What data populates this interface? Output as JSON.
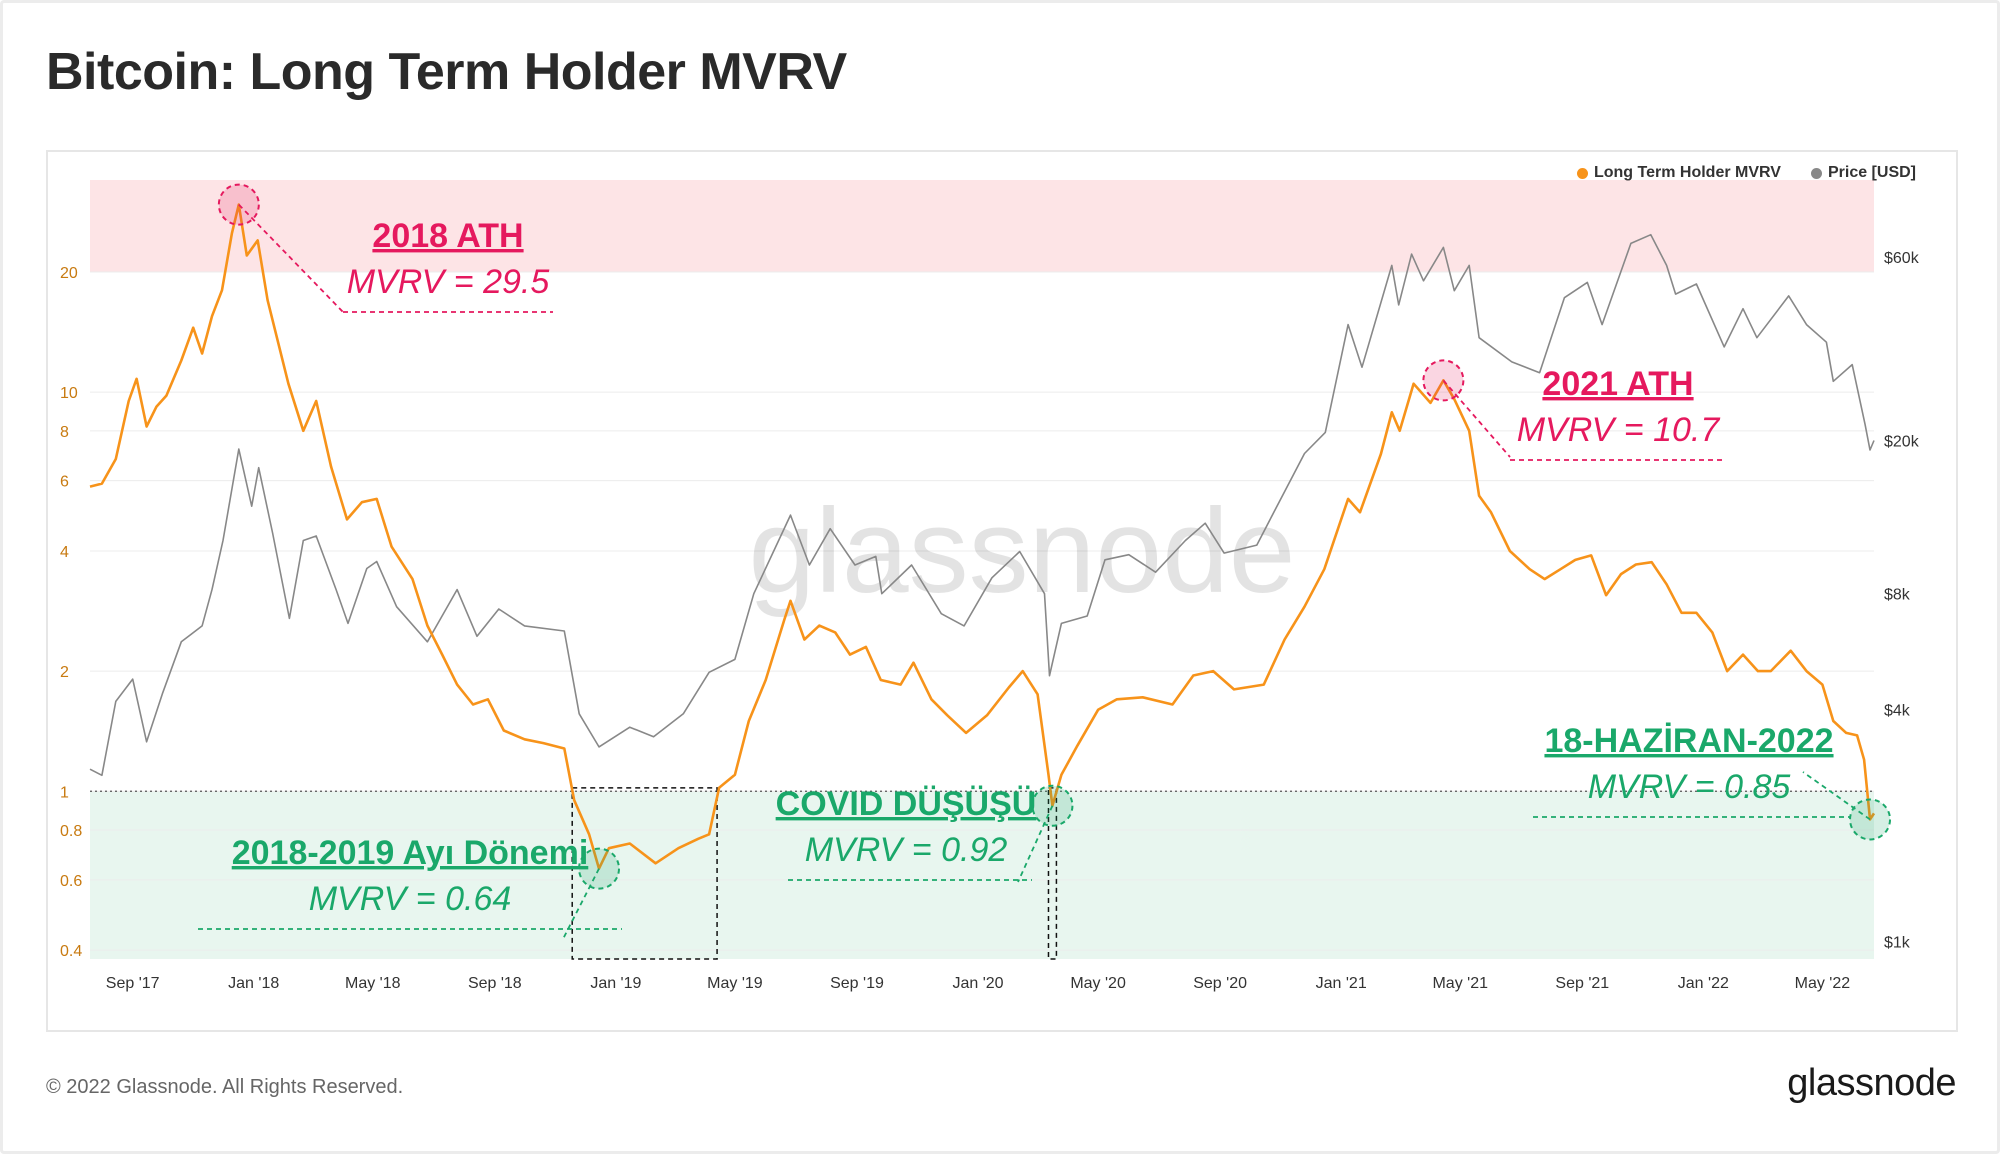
{
  "title": "Bitcoin: Long Term Holder MVRV",
  "footer": {
    "copyright": "© 2022 Glassnode. All Rights Reserved.",
    "logo": "glassnode"
  },
  "watermark": "glassnode",
  "chart_data": {
    "type": "line",
    "title": "Bitcoin: Long Term Holder MVRV",
    "x_range": [
      "2017-07-20",
      "2022-06-22"
    ],
    "x_ticks": [
      "Sep '17",
      "Jan '18",
      "May '18",
      "Sep '18",
      "Jan '19",
      "May '19",
      "Sep '19",
      "Jan '20",
      "May '20",
      "Sep '20",
      "Jan '21",
      "May '21",
      "Sep '21",
      "Jan '22",
      "May '22"
    ],
    "left_axis": {
      "scale": "log",
      "range": [
        0.38,
        34
      ],
      "ticks": [
        "0.4",
        "0.6",
        "0.8",
        "1",
        "2",
        "4",
        "6",
        "8",
        "10",
        "20"
      ]
    },
    "right_axis": {
      "scale": "log",
      "range": [
        900,
        95000
      ],
      "ticks": [
        "$1k",
        "$4k",
        "$8k",
        "$20k",
        "$60k"
      ]
    },
    "legend_position": "top-right",
    "zones": [
      {
        "name": "overvalued",
        "from": 20,
        "to": 34,
        "color": "#fde4e6"
      },
      {
        "name": "undervalued",
        "from": 0.38,
        "to": 1,
        "color": "#e8f6ef"
      }
    ],
    "reference_line": 1,
    "colors": {
      "mvrv": "#f7931a",
      "price": "#888888",
      "red_annotation": "#e5195e",
      "green_annotation": "#1aa86a"
    },
    "series": [
      {
        "name": "Long Term Holder MVRV",
        "axis": "left",
        "points": [
          [
            "2017-07-20",
            5.8
          ],
          [
            "2017-08-01",
            5.9
          ],
          [
            "2017-08-15",
            6.8
          ],
          [
            "2017-08-28",
            9.5
          ],
          [
            "2017-09-05",
            10.8
          ],
          [
            "2017-09-15",
            8.2
          ],
          [
            "2017-09-25",
            9.2
          ],
          [
            "2017-10-05",
            9.8
          ],
          [
            "2017-10-20",
            12.0
          ],
          [
            "2017-11-01",
            14.5
          ],
          [
            "2017-11-10",
            12.5
          ],
          [
            "2017-11-20",
            15.5
          ],
          [
            "2017-11-30",
            18.0
          ],
          [
            "2017-12-10",
            25.0
          ],
          [
            "2017-12-17",
            29.5
          ],
          [
            "2017-12-25",
            22.0
          ],
          [
            "2018-01-05",
            24.0
          ],
          [
            "2018-01-15",
            17.0
          ],
          [
            "2018-02-05",
            10.5
          ],
          [
            "2018-02-20",
            8.0
          ],
          [
            "2018-03-05",
            9.5
          ],
          [
            "2018-03-20",
            6.5
          ],
          [
            "2018-04-05",
            4.8
          ],
          [
            "2018-04-20",
            5.3
          ],
          [
            "2018-05-05",
            5.4
          ],
          [
            "2018-05-20",
            4.1
          ],
          [
            "2018-06-10",
            3.4
          ],
          [
            "2018-06-25",
            2.6
          ],
          [
            "2018-07-10",
            2.2
          ],
          [
            "2018-07-25",
            1.85
          ],
          [
            "2018-08-10",
            1.65
          ],
          [
            "2018-08-25",
            1.7
          ],
          [
            "2018-09-10",
            1.42
          ],
          [
            "2018-10-01",
            1.35
          ],
          [
            "2018-10-20",
            1.32
          ],
          [
            "2018-11-10",
            1.28
          ],
          [
            "2018-11-20",
            0.95
          ],
          [
            "2018-12-05",
            0.78
          ],
          [
            "2018-12-15",
            0.64
          ],
          [
            "2018-12-25",
            0.72
          ],
          [
            "2019-01-15",
            0.74
          ],
          [
            "2019-02-10",
            0.66
          ],
          [
            "2019-03-05",
            0.72
          ],
          [
            "2019-03-25",
            0.76
          ],
          [
            "2019-04-05",
            0.78
          ],
          [
            "2019-04-15",
            1.02
          ],
          [
            "2019-05-01",
            1.1
          ],
          [
            "2019-05-15",
            1.5
          ],
          [
            "2019-06-01",
            1.9
          ],
          [
            "2019-06-20",
            2.7
          ],
          [
            "2019-06-26",
            3.0
          ],
          [
            "2019-07-10",
            2.4
          ],
          [
            "2019-07-25",
            2.6
          ],
          [
            "2019-08-10",
            2.5
          ],
          [
            "2019-08-25",
            2.2
          ],
          [
            "2019-09-10",
            2.3
          ],
          [
            "2019-09-25",
            1.9
          ],
          [
            "2019-10-15",
            1.85
          ],
          [
            "2019-10-28",
            2.1
          ],
          [
            "2019-11-15",
            1.7
          ],
          [
            "2019-12-01",
            1.55
          ],
          [
            "2019-12-20",
            1.4
          ],
          [
            "2020-01-10",
            1.55
          ],
          [
            "2020-02-01",
            1.82
          ],
          [
            "2020-02-15",
            2.0
          ],
          [
            "2020-03-01",
            1.75
          ],
          [
            "2020-03-12",
            1.1
          ],
          [
            "2020-03-16",
            0.92
          ],
          [
            "2020-03-25",
            1.1
          ],
          [
            "2020-04-10",
            1.3
          ],
          [
            "2020-05-01",
            1.6
          ],
          [
            "2020-05-20",
            1.7
          ],
          [
            "2020-06-15",
            1.72
          ],
          [
            "2020-07-15",
            1.65
          ],
          [
            "2020-08-05",
            1.95
          ],
          [
            "2020-08-25",
            2.0
          ],
          [
            "2020-09-15",
            1.8
          ],
          [
            "2020-10-15",
            1.85
          ],
          [
            "2020-11-05",
            2.4
          ],
          [
            "2020-11-25",
            2.9
          ],
          [
            "2020-12-15",
            3.6
          ],
          [
            "2021-01-08",
            5.4
          ],
          [
            "2021-01-20",
            5.0
          ],
          [
            "2021-02-10",
            7.0
          ],
          [
            "2021-02-21",
            8.9
          ],
          [
            "2021-03-01",
            8.0
          ],
          [
            "2021-03-15",
            10.5
          ],
          [
            "2021-04-01",
            9.4
          ],
          [
            "2021-04-14",
            10.7
          ],
          [
            "2021-04-25",
            9.6
          ],
          [
            "2021-05-10",
            8.0
          ],
          [
            "2021-05-20",
            5.5
          ],
          [
            "2021-06-01",
            5.0
          ],
          [
            "2021-06-20",
            4.0
          ],
          [
            "2021-07-10",
            3.6
          ],
          [
            "2021-07-25",
            3.4
          ],
          [
            "2021-08-10",
            3.6
          ],
          [
            "2021-08-25",
            3.8
          ],
          [
            "2021-09-10",
            3.9
          ],
          [
            "2021-09-25",
            3.1
          ],
          [
            "2021-10-10",
            3.5
          ],
          [
            "2021-10-25",
            3.7
          ],
          [
            "2021-11-10",
            3.75
          ],
          [
            "2021-11-25",
            3.3
          ],
          [
            "2021-12-10",
            2.8
          ],
          [
            "2021-12-25",
            2.8
          ],
          [
            "2022-01-10",
            2.5
          ],
          [
            "2022-01-25",
            2.0
          ],
          [
            "2022-02-10",
            2.2
          ],
          [
            "2022-02-25",
            2.0
          ],
          [
            "2022-03-10",
            2.0
          ],
          [
            "2022-03-30",
            2.25
          ],
          [
            "2022-04-15",
            2.0
          ],
          [
            "2022-05-01",
            1.85
          ],
          [
            "2022-05-12",
            1.5
          ],
          [
            "2022-05-25",
            1.4
          ],
          [
            "2022-06-05",
            1.38
          ],
          [
            "2022-06-12",
            1.2
          ],
          [
            "2022-06-18",
            0.85
          ],
          [
            "2022-06-22",
            0.88
          ]
        ]
      },
      {
        "name": "Price [USD]",
        "axis": "right",
        "points": [
          [
            "2017-07-20",
            2800
          ],
          [
            "2017-08-01",
            2700
          ],
          [
            "2017-08-15",
            4200
          ],
          [
            "2017-09-01",
            4800
          ],
          [
            "2017-09-15",
            3300
          ],
          [
            "2017-10-01",
            4400
          ],
          [
            "2017-10-20",
            6000
          ],
          [
            "2017-11-10",
            6600
          ],
          [
            "2017-11-20",
            8200
          ],
          [
            "2017-12-01",
            11000
          ],
          [
            "2017-12-17",
            19000
          ],
          [
            "2017-12-30",
            13500
          ],
          [
            "2018-01-06",
            17000
          ],
          [
            "2018-01-20",
            11500
          ],
          [
            "2018-02-06",
            6900
          ],
          [
            "2018-02-20",
            11000
          ],
          [
            "2018-03-05",
            11300
          ],
          [
            "2018-03-25",
            8200
          ],
          [
            "2018-04-06",
            6700
          ],
          [
            "2018-04-25",
            9300
          ],
          [
            "2018-05-05",
            9700
          ],
          [
            "2018-05-25",
            7400
          ],
          [
            "2018-06-25",
            6000
          ],
          [
            "2018-07-25",
            8200
          ],
          [
            "2018-08-14",
            6200
          ],
          [
            "2018-09-05",
            7300
          ],
          [
            "2018-10-01",
            6600
          ],
          [
            "2018-11-10",
            6400
          ],
          [
            "2018-11-25",
            3900
          ],
          [
            "2018-12-15",
            3200
          ],
          [
            "2019-01-15",
            3600
          ],
          [
            "2019-02-08",
            3400
          ],
          [
            "2019-03-10",
            3900
          ],
          [
            "2019-04-05",
            5000
          ],
          [
            "2019-05-01",
            5400
          ],
          [
            "2019-05-20",
            8000
          ],
          [
            "2019-06-26",
            12800
          ],
          [
            "2019-07-15",
            9500
          ],
          [
            "2019-08-05",
            11800
          ],
          [
            "2019-08-30",
            9500
          ],
          [
            "2019-09-20",
            10000
          ],
          [
            "2019-09-26",
            8000
          ],
          [
            "2019-10-26",
            9500
          ],
          [
            "2019-11-25",
            7100
          ],
          [
            "2019-12-18",
            6600
          ],
          [
            "2020-01-15",
            8800
          ],
          [
            "2020-02-12",
            10300
          ],
          [
            "2020-03-08",
            8000
          ],
          [
            "2020-03-13",
            4900
          ],
          [
            "2020-03-25",
            6700
          ],
          [
            "2020-04-20",
            7000
          ],
          [
            "2020-05-08",
            9800
          ],
          [
            "2020-06-01",
            10100
          ],
          [
            "2020-06-28",
            9100
          ],
          [
            "2020-07-28",
            11000
          ],
          [
            "2020-08-17",
            12200
          ],
          [
            "2020-09-05",
            10200
          ],
          [
            "2020-10-08",
            10700
          ],
          [
            "2020-10-25",
            13000
          ],
          [
            "2020-11-25",
            18500
          ],
          [
            "2020-12-16",
            21000
          ],
          [
            "2021-01-08",
            40000
          ],
          [
            "2021-01-22",
            31000
          ],
          [
            "2021-02-21",
            57000
          ],
          [
            "2021-02-28",
            45000
          ],
          [
            "2021-03-13",
            61000
          ],
          [
            "2021-03-25",
            52000
          ],
          [
            "2021-04-14",
            63500
          ],
          [
            "2021-04-25",
            49000
          ],
          [
            "2021-05-10",
            57000
          ],
          [
            "2021-05-20",
            37000
          ],
          [
            "2021-06-22",
            32000
          ],
          [
            "2021-07-20",
            30000
          ],
          [
            "2021-08-14",
            47000
          ],
          [
            "2021-09-06",
            51500
          ],
          [
            "2021-09-21",
            40000
          ],
          [
            "2021-10-20",
            65000
          ],
          [
            "2021-11-09",
            68500
          ],
          [
            "2021-11-25",
            57000
          ],
          [
            "2021-12-04",
            48000
          ],
          [
            "2021-12-25",
            51000
          ],
          [
            "2022-01-22",
            35000
          ],
          [
            "2022-02-10",
            44000
          ],
          [
            "2022-02-24",
            37000
          ],
          [
            "2022-03-28",
            47500
          ],
          [
            "2022-04-15",
            40000
          ],
          [
            "2022-05-05",
            36000
          ],
          [
            "2022-05-12",
            28500
          ],
          [
            "2022-05-31",
            31500
          ],
          [
            "2022-06-13",
            22000
          ],
          [
            "2022-06-18",
            18900
          ],
          [
            "2022-06-22",
            20000
          ]
        ]
      }
    ],
    "annotations": [
      {
        "id": "ath-2018",
        "title": "2018 ATH",
        "subtitle": "MVRV = 29.5",
        "date": "2017-12-17",
        "value": 29.5,
        "color": "red"
      },
      {
        "id": "ath-2021",
        "title": "2021 ATH",
        "subtitle": "MVRV = 10.7",
        "date": "2021-04-14",
        "value": 10.7,
        "color": "red"
      },
      {
        "id": "bear-2018-2019",
        "title": "2018-2019 Ayı Dönemi",
        "subtitle": "MVRV = 0.64",
        "date": "2018-12-15",
        "value": 0.64,
        "color": "green",
        "box": [
          "2018-11-18",
          "2019-04-13"
        ]
      },
      {
        "id": "covid",
        "title": "COVID DÜŞÜŞÜ",
        "subtitle": "MVRV = 0.92",
        "date": "2020-03-16",
        "value": 0.92,
        "color": "green",
        "box": [
          "2020-03-12",
          "2020-03-20"
        ]
      },
      {
        "id": "june-2022",
        "title": "18-HAZİRAN-2022",
        "subtitle": "MVRV = 0.85",
        "date": "2022-06-18",
        "value": 0.85,
        "color": "green"
      }
    ]
  }
}
